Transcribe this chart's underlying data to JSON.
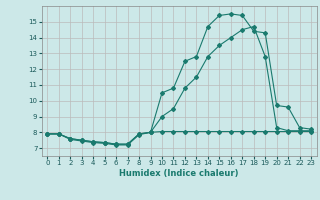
{
  "title": "",
  "xlabel": "Humidex (Indice chaleur)",
  "bg_color": "#cce8e8",
  "grid_color": "#bbbbbb",
  "line_color": "#1a7a6e",
  "xlim": [
    -0.5,
    23.5
  ],
  "ylim": [
    6.5,
    16.0
  ],
  "xticks": [
    0,
    1,
    2,
    3,
    4,
    5,
    6,
    7,
    8,
    9,
    10,
    11,
    12,
    13,
    14,
    15,
    16,
    17,
    18,
    19,
    20,
    21,
    22,
    23
  ],
  "yticks": [
    7,
    8,
    9,
    10,
    11,
    12,
    13,
    14,
    15
  ],
  "curve1_x": [
    0,
    1,
    2,
    3,
    4,
    5,
    6,
    7,
    8,
    9,
    10,
    11,
    12,
    13,
    14,
    15,
    16,
    17,
    18,
    19,
    20,
    21,
    22,
    23
  ],
  "curve1_y": [
    7.9,
    7.9,
    7.55,
    7.45,
    7.35,
    7.3,
    7.2,
    7.2,
    7.85,
    8.0,
    8.05,
    8.05,
    8.05,
    8.05,
    8.05,
    8.05,
    8.05,
    8.05,
    8.05,
    8.05,
    8.05,
    8.05,
    8.05,
    8.05
  ],
  "curve2_x": [
    0,
    1,
    2,
    3,
    4,
    5,
    6,
    7,
    8,
    9,
    10,
    11,
    12,
    13,
    14,
    15,
    16,
    17,
    18,
    19,
    20,
    21,
    22,
    23
  ],
  "curve2_y": [
    7.9,
    7.9,
    7.6,
    7.5,
    7.4,
    7.35,
    7.25,
    7.25,
    7.9,
    8.0,
    10.5,
    10.8,
    12.5,
    12.8,
    14.7,
    15.4,
    15.5,
    15.4,
    14.4,
    14.3,
    9.7,
    9.6,
    8.3,
    8.2
  ],
  "curve3_x": [
    0,
    1,
    2,
    3,
    4,
    5,
    6,
    7,
    8,
    9,
    10,
    11,
    12,
    13,
    14,
    15,
    16,
    17,
    18,
    19,
    20,
    21,
    22,
    23
  ],
  "curve3_y": [
    7.9,
    7.9,
    7.6,
    7.5,
    7.4,
    7.35,
    7.25,
    7.25,
    7.9,
    8.0,
    9.0,
    9.5,
    10.8,
    11.5,
    12.8,
    13.5,
    14.0,
    14.5,
    14.7,
    12.8,
    8.3,
    8.1,
    8.1,
    8.1
  ]
}
